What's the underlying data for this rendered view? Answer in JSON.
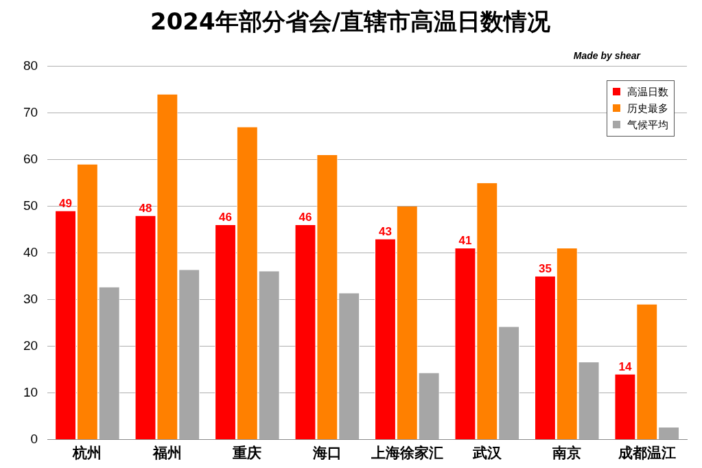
{
  "chart_data": {
    "type": "bar",
    "title": "2024年部分省会/直辖市高温日数情况",
    "annotations": [
      "Made by shear"
    ],
    "categories": [
      "杭州",
      "福州",
      "重庆",
      "海口",
      "上海徐家汇",
      "武汉",
      "南京",
      "成都温江"
    ],
    "series": [
      {
        "name": "高温日数",
        "color": "#ff0000",
        "values": [
          49,
          48,
          46,
          46,
          43,
          41,
          35,
          14
        ],
        "value_labels": [
          "49",
          "48",
          "46",
          "46",
          "43",
          "41",
          "35",
          "14"
        ]
      },
      {
        "name": "历史最多",
        "color": "#ff8000",
        "values": [
          59,
          74,
          67,
          61,
          50,
          55,
          41,
          29
        ]
      },
      {
        "name": "气候平均",
        "color": "#a6a6a6",
        "values": [
          32.7,
          36.4,
          36.1,
          31.4,
          14.3,
          24.2,
          16.6,
          2.6
        ]
      }
    ],
    "ylim": [
      0,
      80
    ],
    "yticks": [
      0,
      10,
      20,
      30,
      40,
      50,
      60,
      70,
      80
    ],
    "grid": "y",
    "legend": "top right"
  }
}
